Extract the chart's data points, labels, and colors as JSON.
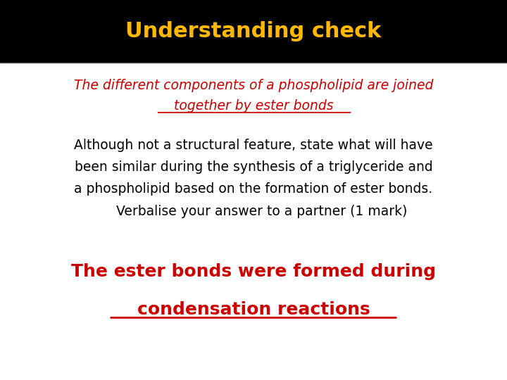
{
  "title": "Understanding check",
  "title_color": "#FFB800",
  "title_bg_color": "#000000",
  "body_bg_color": "#FFFFFF",
  "subtitle_line1": "The different components of a phospholipid are joined",
  "subtitle_line2": "together by ester bonds",
  "subtitle_color": "#CC0000",
  "body_text_line1": "Although not a structural feature, state what will have",
  "body_text_line2": "been similar during the synthesis of a triglyceride and",
  "body_text_line3": "a phospholipid based on the formation of ester bonds.",
  "body_text_line4": "    Verbalise your answer to a partner (1 mark)",
  "body_text_color": "#000000",
  "answer_line1": "The ester bonds were formed during",
  "answer_line2": "condensation reactions",
  "answer_color": "#CC0000"
}
